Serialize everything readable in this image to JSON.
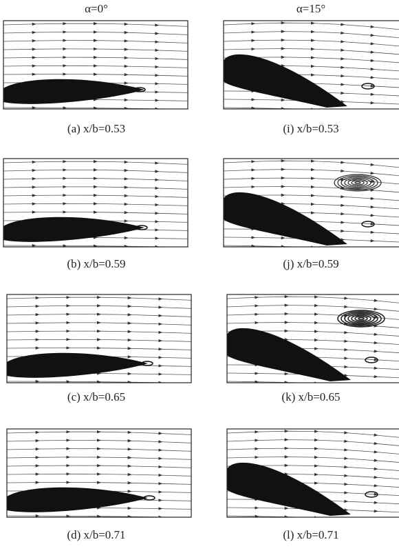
{
  "columns": [
    {
      "header": "α=0°",
      "panels": [
        {
          "caption": "(a) x/b=0.53"
        },
        {
          "caption": "(b) x/b=0.59"
        },
        {
          "caption": "(c) x/b=0.65"
        },
        {
          "caption": "(d) x/b=0.71"
        }
      ]
    },
    {
      "header": "α=15°",
      "panels": [
        {
          "caption": "(i) x/b=0.53"
        },
        {
          "caption": "(j) x/b=0.59"
        },
        {
          "caption": "(k) x/b=0.65"
        },
        {
          "caption": "(l) x/b=0.71"
        }
      ]
    }
  ]
}
